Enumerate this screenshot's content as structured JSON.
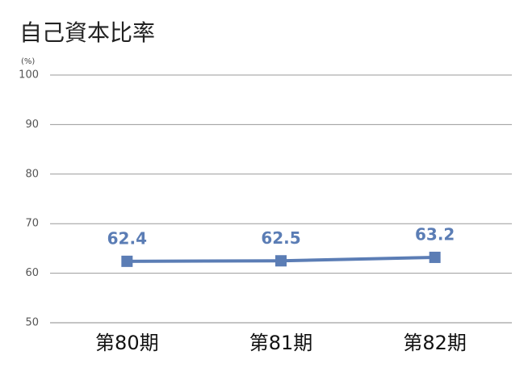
{
  "chart_data": {
    "type": "line",
    "title": "自己資本比率",
    "y_unit": "(%)",
    "categories": [
      "第80期",
      "第81期",
      "第82期"
    ],
    "values": [
      62.4,
      62.5,
      63.2
    ],
    "color": "#5b7db5",
    "ylim": [
      50,
      100
    ],
    "yticks": [
      50,
      60,
      70,
      80,
      90,
      100
    ],
    "grid": true
  }
}
